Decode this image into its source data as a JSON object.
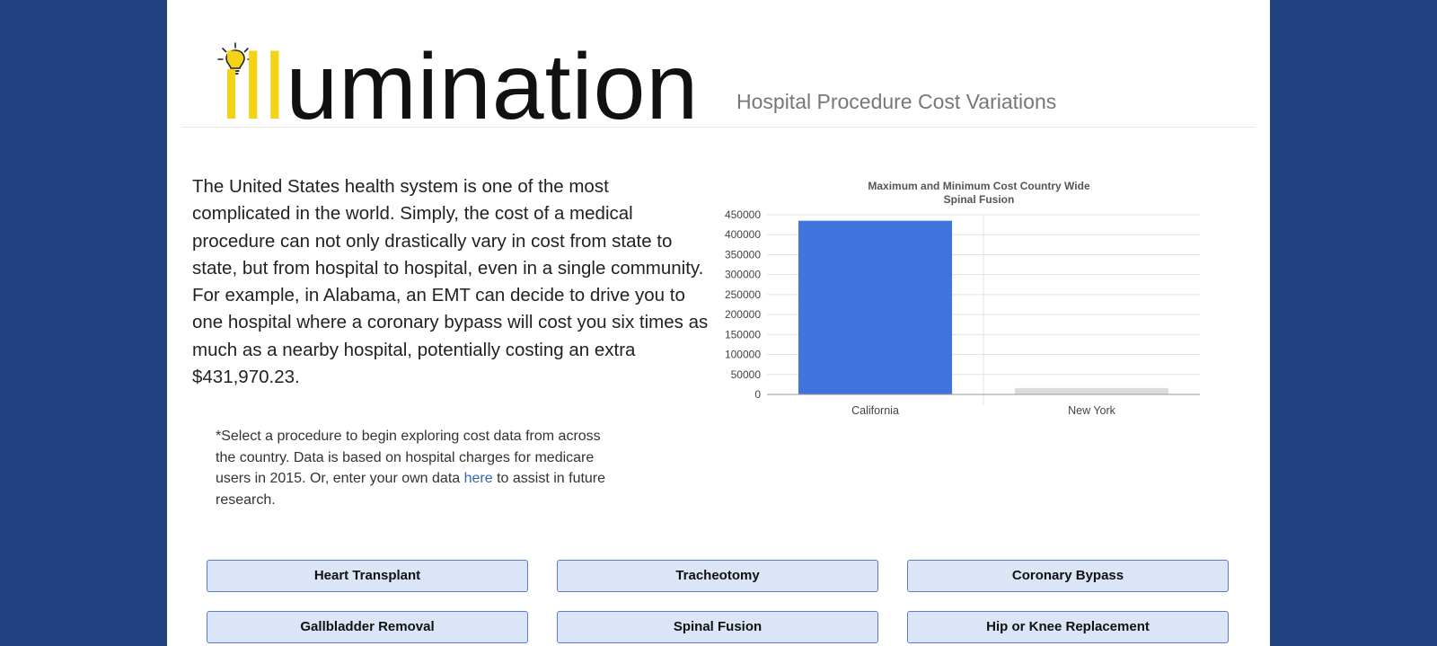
{
  "header": {
    "logo_yellow": "ill",
    "logo_black": "umination",
    "subtitle": "Hospital Procedure Cost Variations"
  },
  "intro": {
    "text": "The United States health system is one of the most complicated in the world. Simply, the cost of a medical procedure can not only drastically vary in cost from state to state, but from hospital to hospital, even in a single community. For example, in Alabama, an EMT can decide to drive you to one hospital where a coronary bypass will cost you six times as much as a nearby hospital, potentially costing an extra $431,970.23."
  },
  "note": {
    "before": "*Select a procedure to begin exploring cost data from across the country. Data is based on hospital charges for medicare users in 2015. Or, enter your own data ",
    "link": "here",
    "after": " to assist in future research."
  },
  "procedures": [
    "Heart Transplant",
    "Tracheotomy",
    "Coronary Bypass",
    "Gallbladder Removal",
    "Spinal Fusion",
    "Hip or Knee Replacement"
  ],
  "chart_data": {
    "type": "bar",
    "title": "Maximum and Minimum Cost Country Wide",
    "subtitle": "Spinal Fusion",
    "categories": [
      "California",
      "New York"
    ],
    "values": [
      435000,
      16000
    ],
    "colors": [
      "#4274de",
      "#dcdcdc"
    ],
    "ylim": [
      0,
      450000
    ],
    "yticks": [
      "0",
      "50000",
      "100000",
      "150000",
      "200000",
      "250000",
      "300000",
      "350000",
      "400000",
      "450000"
    ],
    "grid": true,
    "xlabel": "",
    "ylabel": ""
  }
}
